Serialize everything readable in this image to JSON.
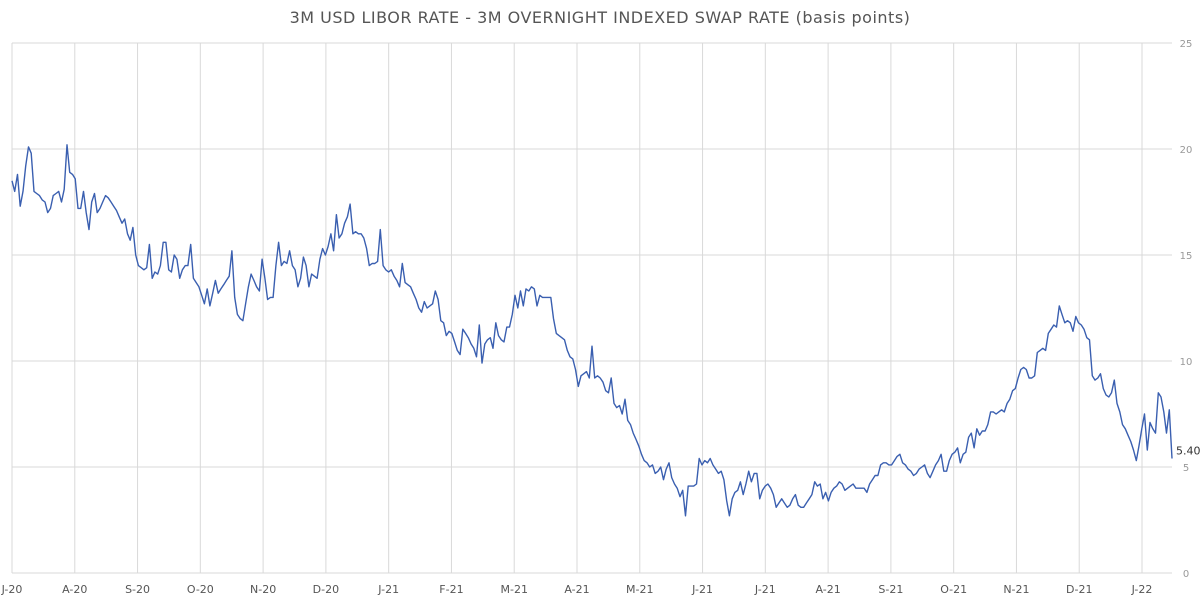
{
  "chart_data": {
    "type": "line",
    "title": "3M USD LIBOR RATE - 3M OVERNIGHT INDEXED SWAP RATE (basis points)",
    "xlabel": "",
    "ylabel": "",
    "ylim": [
      0,
      25
    ],
    "y_ticks": [
      "0",
      "5",
      "10",
      "15",
      "20",
      "25"
    ],
    "y_axis_position": "right",
    "grid": true,
    "x_ticks": [
      "J-20",
      "A-20",
      "S-20",
      "O-20",
      "N-20",
      "D-20",
      "J-21",
      "F-21",
      "M-21",
      "A-21",
      "M-21",
      "J-21",
      "J-21",
      "A-21",
      "S-21",
      "O-21",
      "N-21",
      "D-21",
      "J-22"
    ],
    "last_value_label": "5.40",
    "line_color": "#3a5fb0",
    "series": [
      {
        "values": [
          18.5,
          18.0,
          18.8,
          17.3,
          18.0,
          19.2,
          20.1,
          19.8,
          18.0,
          17.9,
          17.8,
          17.6,
          17.5,
          17.0,
          17.2,
          17.8,
          17.9,
          18.0,
          17.5,
          18.1,
          20.2,
          18.9,
          18.8,
          18.6,
          17.2,
          17.2,
          18.0,
          17.0,
          16.2,
          17.5,
          17.9,
          17.0,
          17.2,
          17.5,
          17.8,
          17.7,
          17.5,
          17.3,
          17.1,
          16.8,
          16.5,
          16.7,
          16.0,
          15.7,
          16.3,
          15.0,
          14.5,
          14.4,
          14.3,
          14.4,
          15.5,
          13.9,
          14.2,
          14.1,
          14.5,
          15.6,
          15.6,
          14.3,
          14.2,
          15.0,
          14.8,
          13.9,
          14.3,
          14.5,
          14.5,
          15.5,
          13.9,
          13.7,
          13.5,
          13.1,
          12.7,
          13.4,
          12.6,
          13.2,
          13.8,
          13.2,
          13.4,
          13.6,
          13.8,
          14.0,
          15.2,
          13.0,
          12.2,
          12.0,
          11.9,
          12.7,
          13.5,
          14.1,
          13.8,
          13.5,
          13.3,
          14.8,
          13.9,
          12.9,
          13.0,
          13.0,
          14.5,
          15.6,
          14.5,
          14.7,
          14.6,
          15.2,
          14.5,
          14.3,
          13.5,
          13.9,
          14.9,
          14.5,
          13.5,
          14.1,
          14.0,
          13.9,
          14.8,
          15.3,
          15.0,
          15.4,
          16.0,
          15.2,
          16.9,
          15.8,
          16.0,
          16.5,
          16.8,
          17.4,
          16.0,
          16.1,
          16.0,
          16.0,
          15.8,
          15.3,
          14.5,
          14.6,
          14.6,
          14.7,
          16.2,
          14.5,
          14.3,
          14.2,
          14.3,
          14.0,
          13.8,
          13.5,
          14.6,
          13.7,
          13.6,
          13.5,
          13.2,
          12.9,
          12.5,
          12.3,
          12.8,
          12.5,
          12.6,
          12.7,
          13.3,
          12.9,
          11.9,
          11.8,
          11.2,
          11.4,
          11.3,
          10.9,
          10.5,
          10.3,
          11.5,
          11.3,
          11.1,
          10.8,
          10.6,
          10.2,
          11.7,
          9.9,
          10.8,
          11.0,
          11.1,
          10.6,
          11.8,
          11.2,
          11.0,
          10.9,
          11.6,
          11.6,
          12.2,
          13.1,
          12.5,
          13.3,
          12.6,
          13.4,
          13.3,
          13.5,
          13.4,
          12.6,
          13.1,
          13.0,
          13.0,
          13.0,
          13.0,
          12.0,
          11.3,
          11.2,
          11.1,
          11.0,
          10.5,
          10.2,
          10.1,
          9.6,
          8.8,
          9.3,
          9.4,
          9.5,
          9.2,
          10.7,
          9.2,
          9.3,
          9.2,
          9.0,
          8.6,
          8.5,
          9.2,
          8.0,
          7.8,
          7.9,
          7.5,
          8.2,
          7.2,
          7.0,
          6.6,
          6.3,
          6.0,
          5.6,
          5.3,
          5.2,
          5.0,
          5.1,
          4.7,
          4.8,
          5.0,
          4.4,
          4.9,
          5.2,
          4.5,
          4.2,
          4.0,
          3.6,
          3.9,
          2.7,
          4.1,
          4.1,
          4.1,
          4.2,
          5.4,
          5.1,
          5.3,
          5.2,
          5.4,
          5.1,
          4.9,
          4.7,
          4.8,
          4.4,
          3.4,
          2.7,
          3.5,
          3.8,
          3.9,
          4.3,
          3.7,
          4.2,
          4.8,
          4.3,
          4.7,
          4.7,
          3.5,
          3.9,
          4.1,
          4.2,
          4.0,
          3.7,
          3.1,
          3.3,
          3.5,
          3.3,
          3.1,
          3.2,
          3.5,
          3.7,
          3.2,
          3.1,
          3.1,
          3.3,
          3.5,
          3.7,
          4.3,
          4.1,
          4.2,
          3.5,
          3.8,
          3.4,
          3.8,
          4.0,
          4.1,
          4.3,
          4.2,
          3.9,
          4.0,
          4.1,
          4.2,
          4.0,
          4.0,
          4.0,
          4.0,
          3.8,
          4.2,
          4.4,
          4.6,
          4.6,
          5.1,
          5.2,
          5.2,
          5.1,
          5.1,
          5.3,
          5.5,
          5.6,
          5.2,
          5.1,
          4.9,
          4.8,
          4.6,
          4.7,
          4.9,
          5.0,
          5.1,
          4.7,
          4.5,
          4.8,
          5.1,
          5.3,
          5.6,
          4.8,
          4.8,
          5.3,
          5.6,
          5.7,
          5.9,
          5.2,
          5.6,
          5.7,
          6.4,
          6.6,
          5.9,
          6.8,
          6.5,
          6.7,
          6.7,
          7.0,
          7.6,
          7.6,
          7.5,
          7.6,
          7.7,
          7.6,
          8.0,
          8.2,
          8.6,
          8.7,
          9.2,
          9.6,
          9.7,
          9.6,
          9.2,
          9.2,
          9.3,
          10.4,
          10.5,
          10.6,
          10.5,
          11.3,
          11.5,
          11.7,
          11.6,
          12.6,
          12.2,
          11.8,
          11.9,
          11.8,
          11.4,
          12.1,
          11.8,
          11.7,
          11.5,
          11.1,
          11.0,
          9.3,
          9.1,
          9.2,
          9.4,
          8.7,
          8.4,
          8.3,
          8.5,
          9.1,
          8.0,
          7.6,
          7.0,
          6.8,
          6.5,
          6.2,
          5.8,
          5.3,
          6.0,
          6.8,
          7.5,
          5.8,
          7.1,
          6.8,
          6.6,
          8.5,
          8.3,
          7.6,
          6.6,
          7.7,
          5.4
        ]
      }
    ]
  }
}
